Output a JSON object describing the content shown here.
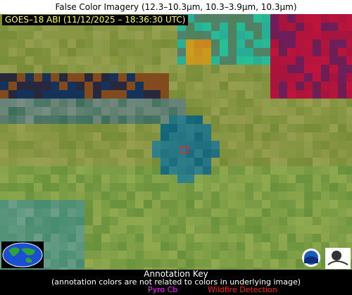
{
  "header": {
    "title": "False Color Imagery (12.3–10.3µm, 10.3–3.9µm, 10.3µm)"
  },
  "overlay": {
    "label": "GOES–18 ABI (11/12/2025 – 18:36:30 UTC)"
  },
  "annotation_key": {
    "title": "Annotation Key",
    "note": "(annotation colors are not related to colors in underlying image)",
    "items": [
      "Pyro Cb",
      "Wildfire Detection"
    ]
  }
}
